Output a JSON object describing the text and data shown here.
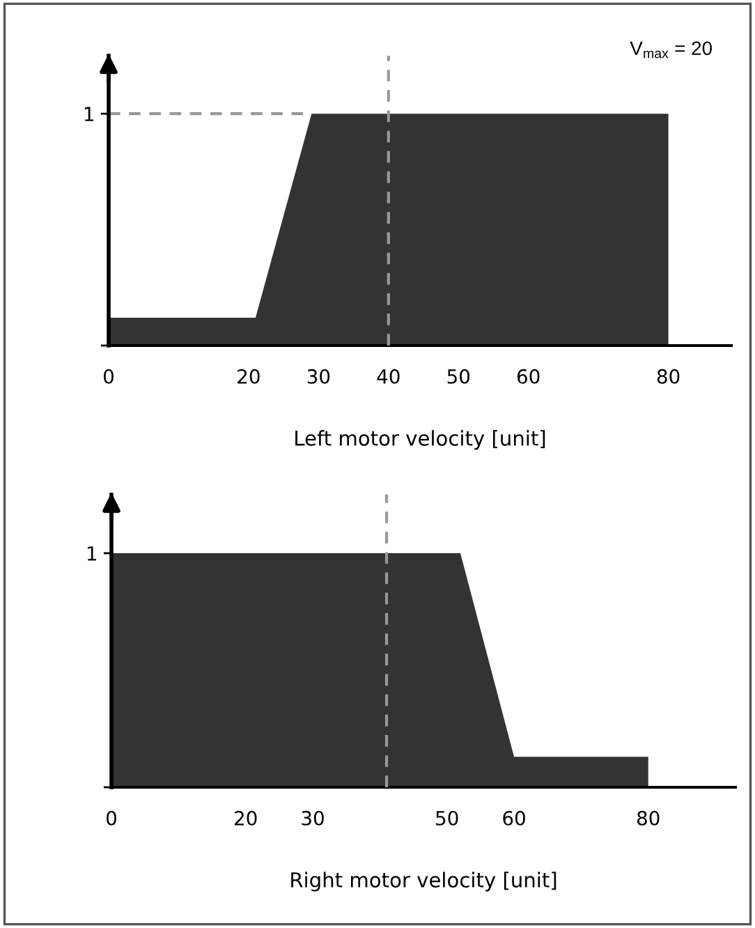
{
  "chart_data": [
    {
      "type": "area",
      "xlabel": "Left motor velocity [unit]",
      "x": [
        0,
        21,
        29,
        80,
        80
      ],
      "series": [
        {
          "color": "#333333",
          "values": [
            0.12,
            0.12,
            1,
            1,
            0
          ]
        }
      ],
      "xlim": [
        0,
        89
      ],
      "xticks": [
        0,
        20,
        30,
        40,
        50,
        60,
        80
      ],
      "ylim": [
        0,
        1.25
      ],
      "yticks": [
        {
          "value": 0,
          "label": null
        },
        1
      ],
      "ref_lines": [
        {
          "axis": "y",
          "value": 1,
          "color": "#999999",
          "line_style": "dashed"
        },
        {
          "axis": "x",
          "value": 40,
          "color": "#999999",
          "line_style": "dashed"
        }
      ],
      "annotations": [
        "V$_{max}$ = 20"
      ],
      "grid": false,
      "legend": false
    },
    {
      "type": "area",
      "xlabel": "Right motor velocity [unit]",
      "x": [
        0,
        52,
        60,
        80,
        80
      ],
      "series": [
        {
          "color": "#333333",
          "values": [
            1,
            1,
            0.13,
            0.13,
            0
          ]
        }
      ],
      "xlim": [
        0,
        93
      ],
      "xticks": [
        0,
        20,
        30,
        50,
        60,
        80
      ],
      "ylim": [
        0,
        1.25
      ],
      "yticks": [
        {
          "value": 0,
          "label": null
        },
        1
      ],
      "ref_lines": [
        {
          "axis": "x",
          "value": 41,
          "color": "#999999",
          "line_style": "dashed"
        }
      ],
      "grid": false,
      "legend": false
    }
  ]
}
